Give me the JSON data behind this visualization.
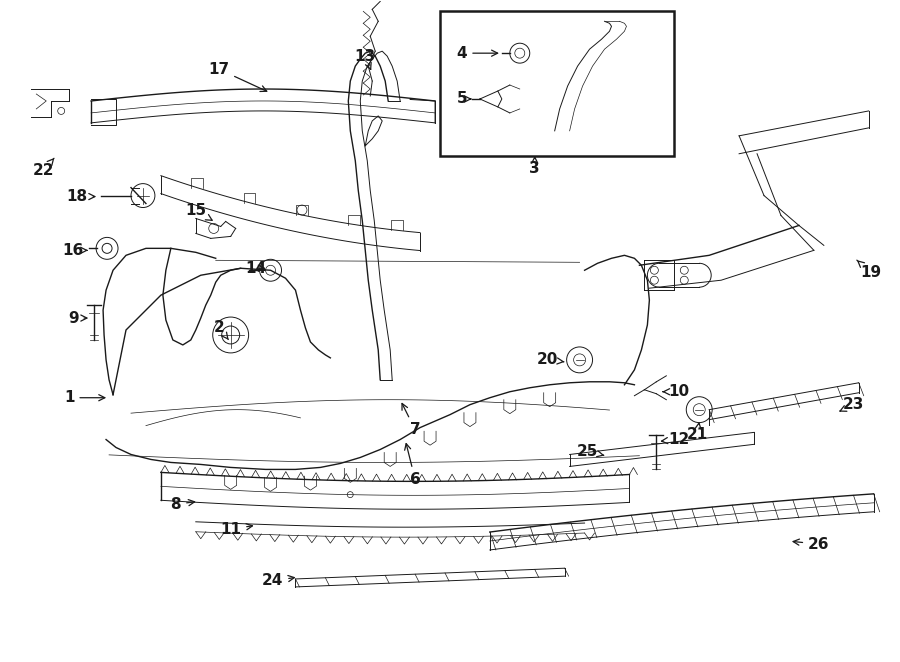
{
  "bg_color": "#ffffff",
  "line_color": "#1a1a1a",
  "fig_width": 9.0,
  "fig_height": 6.62,
  "dpi": 100,
  "font_size": 11,
  "font_weight": "bold",
  "lw_main": 1.4,
  "lw_med": 1.0,
  "lw_thin": 0.7,
  "lw_hair": 0.5
}
